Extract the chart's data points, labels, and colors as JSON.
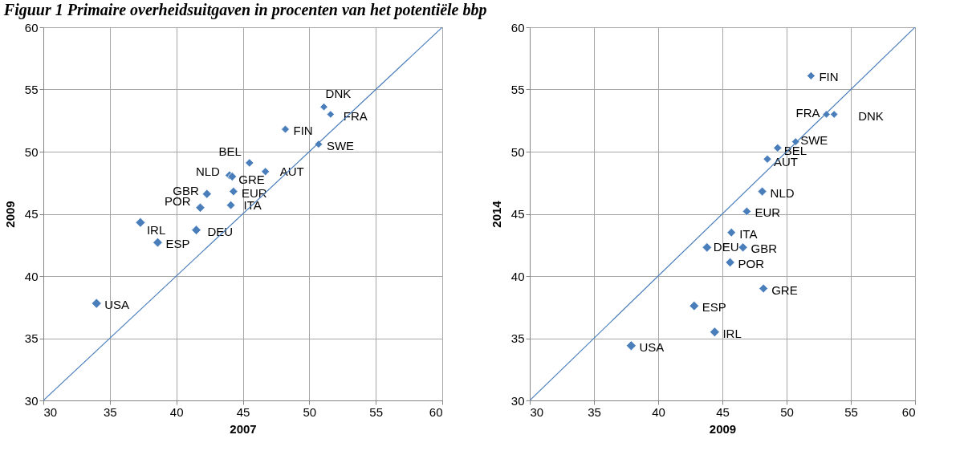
{
  "chart_data": [
    {
      "type": "scatter",
      "title": "Figuur 1 Primaire overheidsuitgaven in procenten van het potentiële bbp",
      "xlabel": "2007",
      "ylabel": "2009",
      "xlim": [
        30,
        60
      ],
      "ylim": [
        30,
        60
      ],
      "xticks": [
        30,
        35,
        40,
        45,
        50,
        55,
        60
      ],
      "yticks": [
        30,
        35,
        40,
        45,
        50,
        55,
        60
      ],
      "grid": true,
      "marker": "diamond",
      "series": [
        {
          "name": "USA",
          "color": "#4a7ebb",
          "x": [
            34.0
          ],
          "values": [
            37.8
          ]
        },
        {
          "name": "IRL",
          "color": "#4a7ebb",
          "x": [
            37.3
          ],
          "values": [
            44.3
          ]
        },
        {
          "name": "ESP",
          "color": "#4a7ebb",
          "x": [
            38.6
          ],
          "values": [
            42.7
          ]
        },
        {
          "name": "DEU",
          "color": "#4a7ebb",
          "x": [
            41.5
          ],
          "values": [
            43.7
          ]
        },
        {
          "name": "POR",
          "color": "#4a7ebb",
          "x": [
            41.8
          ],
          "values": [
            45.5
          ]
        },
        {
          "name": "GBR",
          "color": "#4a7ebb",
          "x": [
            42.3
          ],
          "values": [
            46.6
          ]
        },
        {
          "name": "NLD",
          "color": "#4a7ebb",
          "x": [
            44.0
          ],
          "values": [
            48.1
          ]
        },
        {
          "name": "GRE",
          "color": "#4a7ebb",
          "x": [
            44.2
          ],
          "values": [
            48.0
          ]
        },
        {
          "name": "ITA",
          "color": "#4a7ebb",
          "x": [
            44.1
          ],
          "values": [
            45.7
          ]
        },
        {
          "name": "EUR",
          "color": "#4a7ebb",
          "x": [
            44.3
          ],
          "values": [
            46.8
          ]
        },
        {
          "name": "BEL",
          "color": "#4a7ebb",
          "x": [
            45.5
          ],
          "values": [
            49.1
          ]
        },
        {
          "name": "AUT",
          "color": "#4a7ebb",
          "x": [
            46.7
          ],
          "values": [
            48.4
          ]
        },
        {
          "name": "FIN",
          "color": "#4a7ebb",
          "x": [
            48.2
          ],
          "values": [
            51.8
          ]
        },
        {
          "name": "SWE",
          "color": "#4a7ebb",
          "x": [
            50.7
          ],
          "values": [
            50.6
          ]
        },
        {
          "name": "DNK",
          "color": "#4a7ebb",
          "x": [
            51.1
          ],
          "values": [
            53.6
          ]
        },
        {
          "name": "FRA",
          "color": "#4a7ebb",
          "x": [
            51.6
          ],
          "values": [
            53.0
          ]
        },
        {
          "type": "line",
          "marker": "none",
          "color": "#4a7ebb",
          "x": [
            30,
            60
          ],
          "values": [
            30,
            60
          ]
        }
      ]
    },
    {
      "type": "scatter",
      "xlabel": "2009",
      "ylabel": "2014",
      "xlim": [
        30,
        60
      ],
      "ylim": [
        30,
        60
      ],
      "xticks": [
        30,
        35,
        40,
        45,
        50,
        55,
        60
      ],
      "yticks": [
        30,
        35,
        40,
        45,
        50,
        55,
        60
      ],
      "grid": true,
      "marker": "diamond",
      "series": [
        {
          "name": "USA",
          "color": "#4a7ebb",
          "x": [
            37.9
          ],
          "values": [
            34.4
          ]
        },
        {
          "name": "IRL",
          "color": "#4a7ebb",
          "x": [
            44.4
          ],
          "values": [
            35.5
          ]
        },
        {
          "name": "ESP",
          "color": "#4a7ebb",
          "x": [
            42.8
          ],
          "values": [
            37.6
          ]
        },
        {
          "name": "DEU",
          "color": "#4a7ebb",
          "x": [
            43.8
          ],
          "values": [
            42.3
          ]
        },
        {
          "name": "POR",
          "color": "#4a7ebb",
          "x": [
            45.6
          ],
          "values": [
            41.1
          ]
        },
        {
          "name": "GBR",
          "color": "#4a7ebb",
          "x": [
            46.6
          ],
          "values": [
            42.3
          ]
        },
        {
          "name": "NLD",
          "color": "#4a7ebb",
          "x": [
            48.1
          ],
          "values": [
            46.8
          ]
        },
        {
          "name": "GRE",
          "color": "#4a7ebb",
          "x": [
            48.2
          ],
          "values": [
            39.0
          ]
        },
        {
          "name": "ITA",
          "color": "#4a7ebb",
          "x": [
            45.7
          ],
          "values": [
            43.5
          ]
        },
        {
          "name": "EUR",
          "color": "#4a7ebb",
          "x": [
            46.9
          ],
          "values": [
            45.2
          ]
        },
        {
          "name": "BEL",
          "color": "#4a7ebb",
          "x": [
            49.3
          ],
          "values": [
            50.3
          ]
        },
        {
          "name": "AUT",
          "color": "#4a7ebb",
          "x": [
            48.5
          ],
          "values": [
            49.4
          ]
        },
        {
          "name": "FIN",
          "color": "#4a7ebb",
          "x": [
            51.9
          ],
          "values": [
            56.1
          ]
        },
        {
          "name": "SWE",
          "color": "#4a7ebb",
          "x": [
            50.7
          ],
          "values": [
            50.8
          ]
        },
        {
          "name": "DNK",
          "color": "#4a7ebb",
          "x": [
            53.7
          ],
          "values": [
            53.0
          ]
        },
        {
          "name": "FRA",
          "color": "#4a7ebb",
          "x": [
            53.1
          ],
          "values": [
            53.0
          ]
        },
        {
          "type": "line",
          "marker": "none",
          "color": "#4a7ebb",
          "x": [
            30,
            60
          ],
          "values": [
            30,
            60
          ]
        }
      ]
    }
  ]
}
